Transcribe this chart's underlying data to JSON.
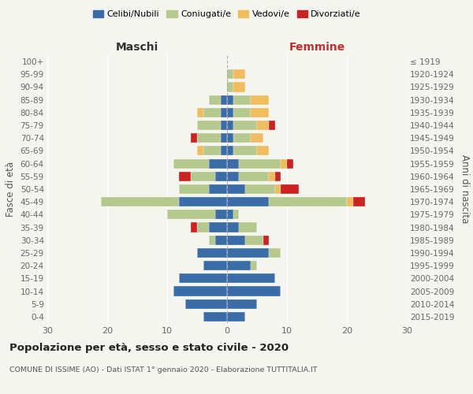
{
  "age_groups": [
    "0-4",
    "5-9",
    "10-14",
    "15-19",
    "20-24",
    "25-29",
    "30-34",
    "35-39",
    "40-44",
    "45-49",
    "50-54",
    "55-59",
    "60-64",
    "65-69",
    "70-74",
    "75-79",
    "80-84",
    "85-89",
    "90-94",
    "95-99",
    "100+"
  ],
  "birth_years": [
    "2015-2019",
    "2010-2014",
    "2005-2009",
    "2000-2004",
    "1995-1999",
    "1990-1994",
    "1985-1989",
    "1980-1984",
    "1975-1979",
    "1970-1974",
    "1965-1969",
    "1960-1964",
    "1955-1959",
    "1950-1954",
    "1945-1949",
    "1940-1944",
    "1935-1939",
    "1930-1934",
    "1925-1929",
    "1920-1924",
    "≤ 1919"
  ],
  "colors": {
    "celibi": "#3a6ca8",
    "coniugati": "#b5c98e",
    "vedovi": "#f0bc5e",
    "divorziati": "#cc2222"
  },
  "male": {
    "celibi": [
      4,
      7,
      9,
      8,
      4,
      5,
      2,
      3,
      2,
      8,
      3,
      2,
      3,
      1,
      1,
      1,
      1,
      1,
      0,
      0,
      0
    ],
    "coniugati": [
      0,
      0,
      0,
      0,
      0,
      0,
      1,
      2,
      8,
      13,
      5,
      4,
      6,
      3,
      4,
      4,
      3,
      2,
      0,
      0,
      0
    ],
    "vedovi": [
      0,
      0,
      0,
      0,
      0,
      0,
      0,
      0,
      0,
      0,
      0,
      0,
      0,
      1,
      0,
      0,
      1,
      0,
      0,
      0,
      0
    ],
    "divorziati": [
      0,
      0,
      0,
      0,
      0,
      0,
      0,
      1,
      0,
      0,
      0,
      2,
      0,
      0,
      1,
      0,
      0,
      0,
      0,
      0,
      0
    ]
  },
  "female": {
    "celibi": [
      3,
      5,
      9,
      8,
      4,
      7,
      3,
      2,
      1,
      7,
      3,
      2,
      2,
      1,
      1,
      1,
      1,
      1,
      0,
      0,
      0
    ],
    "coniugati": [
      0,
      0,
      0,
      0,
      1,
      2,
      3,
      3,
      1,
      13,
      5,
      5,
      7,
      4,
      3,
      4,
      3,
      3,
      1,
      1,
      0
    ],
    "vedovi": [
      0,
      0,
      0,
      0,
      0,
      0,
      0,
      0,
      0,
      1,
      1,
      1,
      1,
      2,
      2,
      2,
      3,
      3,
      2,
      2,
      0
    ],
    "divorziati": [
      0,
      0,
      0,
      0,
      0,
      0,
      1,
      0,
      0,
      2,
      3,
      1,
      1,
      0,
      0,
      1,
      0,
      0,
      0,
      0,
      0
    ]
  },
  "xlim": 30,
  "title": "Popolazione per età, sesso e stato civile - 2020",
  "subtitle": "COMUNE DI ISSIME (AO) - Dati ISTAT 1° gennaio 2020 - Elaborazione TUTTITALIA.IT",
  "ylabel_left": "Fasce di età",
  "ylabel_right": "Anni di nascita",
  "xlabel_left": "Maschi",
  "xlabel_right": "Femmine",
  "legend_labels": [
    "Celibi/Nubili",
    "Coniugati/e",
    "Vedovi/e",
    "Divorziati/e"
  ],
  "background_color": "#f5f5f0"
}
